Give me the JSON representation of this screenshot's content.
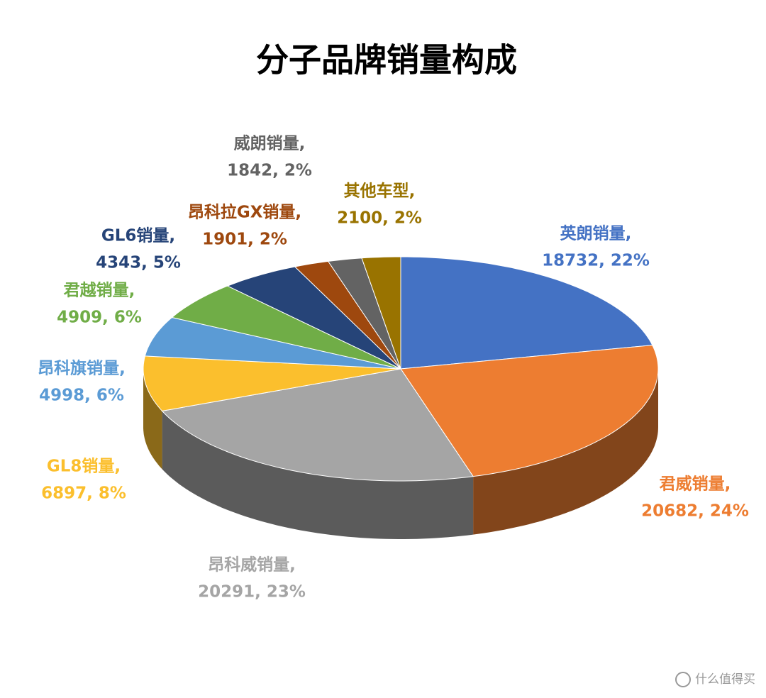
{
  "chart_data": {
    "type": "pie3d",
    "title": "分子品牌销量构成",
    "categories": [
      "英朗销量,",
      "君威销量,",
      "昂科威销量,",
      "GL8销量,",
      "昂科旗销量,",
      "君越销量,",
      "GL6销量,",
      "昂科拉GX销量,",
      "威朗销量,",
      "其他车型,"
    ],
    "values": [
      18732,
      20682,
      20291,
      6897,
      4998,
      4909,
      4343,
      1901,
      1842,
      2100
    ],
    "value_labels": [
      "18732, 22%",
      "20682, 24%",
      "20291, 23%",
      "6897, 8%",
      "4998, 6%",
      "4909, 6%",
      "4343, 5%",
      "1901, 2%",
      "1842, 2%",
      "2100, 2%"
    ],
    "colors": [
      "#4472c4",
      "#ed7d31",
      "#a5a5a5",
      "#fbbf2d",
      "#5b9bd5",
      "#70ad47",
      "#264478",
      "#9e480e",
      "#636363",
      "#997300"
    ],
    "watermark": "什么值得买"
  }
}
